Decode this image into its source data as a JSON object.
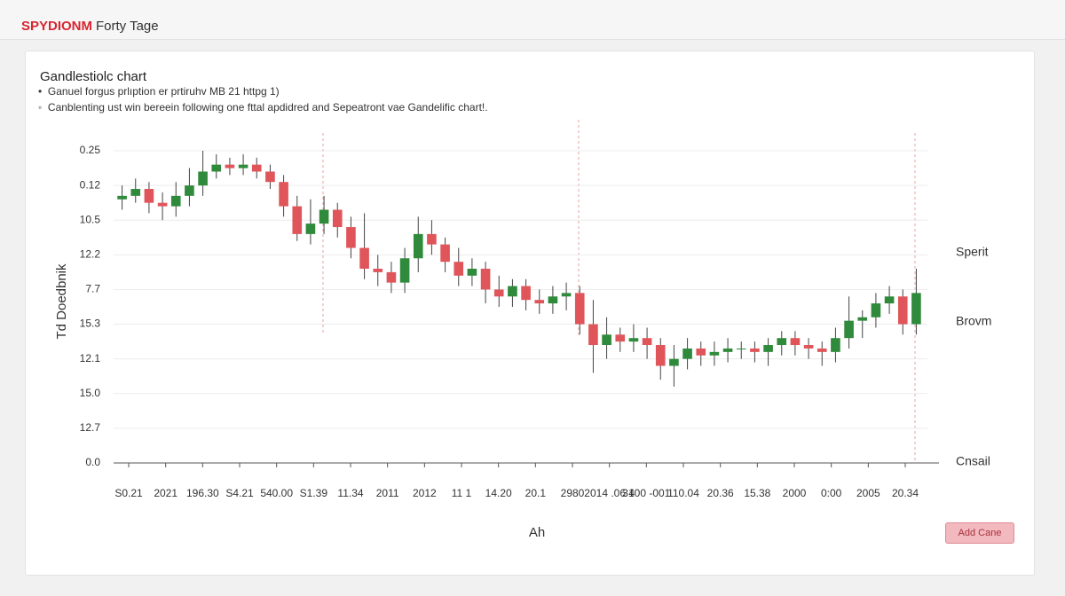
{
  "header": {
    "logo": "SPYDIONM",
    "page_title": "Forty Tage"
  },
  "chart_data": {
    "type": "candlestick",
    "title": "Gandlestiolc chart",
    "bullets": [
      "Ganuel forgus prlıption er prtiruhv MB 21 httpg 1)",
      "Canblenting ust win bereein following one fttal apdidred and Sepeatront vae Gandelific chart!."
    ],
    "ylabel": "Td Doedbnik",
    "xlabel": "Ah",
    "ylim": [
      0,
      9
    ],
    "yticks": [
      {
        "value": 0,
        "label": "0.0"
      },
      {
        "value": 1,
        "label": "12.7"
      },
      {
        "value": 2,
        "label": "15.0"
      },
      {
        "value": 3,
        "label": "12.1"
      },
      {
        "value": 4,
        "label": "15.3"
      },
      {
        "value": 5,
        "label": "7.7"
      },
      {
        "value": 6,
        "label": "12.2"
      },
      {
        "value": 7,
        "label": "10.5"
      },
      {
        "value": 8,
        "label": "0.12"
      },
      {
        "value": 9,
        "label": "0.25"
      }
    ],
    "x_labels": [
      "S0.21",
      "2021",
      "196.30",
      "S4.21",
      "540.00",
      "S1.39",
      "11.34",
      "2011",
      "2012",
      "11 1",
      "14.20",
      "20.1",
      "2980",
      "2014 .06 4",
      "3100 -001",
      "110.04",
      "20.36",
      "15.38",
      "2000",
      "0:00",
      "2005",
      "20.34"
    ],
    "annotations": [
      "Sperit",
      "Brovm",
      "Cnsail"
    ],
    "up_color": "#2f8a3b",
    "down_color": "#e0555a",
    "grid": true,
    "open": [
      7.6,
      7.7,
      7.9,
      7.5,
      7.4,
      7.7,
      8.0,
      8.4,
      8.6,
      8.5,
      8.6,
      8.4,
      8.1,
      7.4,
      6.6,
      6.9,
      7.3,
      6.8,
      6.2,
      5.6,
      5.5,
      5.2,
      5.9,
      6.6,
      6.3,
      5.8,
      5.4,
      5.6,
      5.0,
      4.8,
      5.1,
      4.7,
      4.6,
      4.8,
      4.9,
      4.0,
      3.4,
      3.7,
      3.5,
      3.6,
      3.4,
      2.8,
      3.0,
      3.3,
      3.1,
      3.2,
      3.3,
      3.3,
      3.2,
      3.4,
      3.6,
      3.4,
      3.3,
      3.2,
      3.6,
      4.1,
      4.2,
      4.6,
      4.8,
      4.0
    ],
    "high": [
      8.0,
      8.2,
      8.1,
      7.8,
      8.1,
      8.5,
      9.0,
      8.9,
      8.8,
      8.9,
      8.8,
      8.6,
      8.3,
      7.7,
      7.6,
      7.7,
      7.5,
      7.1,
      7.2,
      6.0,
      5.8,
      6.2,
      7.1,
      7.0,
      6.5,
      6.2,
      5.9,
      5.8,
      5.4,
      5.3,
      5.3,
      5.0,
      5.1,
      5.2,
      5.1,
      4.7,
      4.2,
      3.9,
      4.0,
      3.9,
      3.6,
      3.4,
      3.6,
      3.5,
      3.5,
      3.6,
      3.5,
      3.5,
      3.6,
      3.8,
      3.8,
      3.6,
      3.5,
      3.9,
      4.8,
      4.4,
      4.9,
      5.1,
      5.0,
      5.6
    ],
    "low": [
      7.3,
      7.5,
      7.2,
      7.0,
      7.1,
      7.4,
      7.7,
      8.2,
      8.3,
      8.3,
      8.2,
      7.9,
      7.1,
      6.4,
      6.3,
      6.6,
      6.5,
      5.9,
      5.3,
      5.1,
      4.9,
      4.9,
      5.5,
      6.0,
      5.5,
      5.1,
      5.1,
      4.6,
      4.5,
      4.5,
      4.4,
      4.3,
      4.3,
      4.4,
      3.7,
      2.6,
      3.0,
      3.2,
      3.2,
      3.0,
      2.4,
      2.2,
      2.7,
      2.8,
      2.8,
      2.9,
      3.0,
      2.9,
      2.8,
      3.1,
      3.1,
      3.0,
      2.8,
      2.9,
      3.3,
      3.6,
      3.9,
      4.3,
      3.7,
      3.7
    ],
    "close": [
      7.7,
      7.9,
      7.5,
      7.4,
      7.7,
      8.0,
      8.4,
      8.6,
      8.5,
      8.6,
      8.4,
      8.1,
      7.4,
      6.6,
      6.9,
      7.3,
      6.8,
      6.2,
      5.6,
      5.5,
      5.2,
      5.9,
      6.6,
      6.3,
      5.8,
      5.4,
      5.6,
      5.0,
      4.8,
      5.1,
      4.7,
      4.6,
      4.8,
      4.9,
      4.0,
      3.4,
      3.7,
      3.5,
      3.6,
      3.4,
      2.8,
      3.0,
      3.3,
      3.1,
      3.2,
      3.3,
      3.3,
      3.2,
      3.4,
      3.6,
      3.4,
      3.3,
      3.2,
      3.6,
      4.1,
      4.2,
      4.6,
      4.8,
      4.0,
      4.9
    ]
  },
  "button": "Add Cane"
}
